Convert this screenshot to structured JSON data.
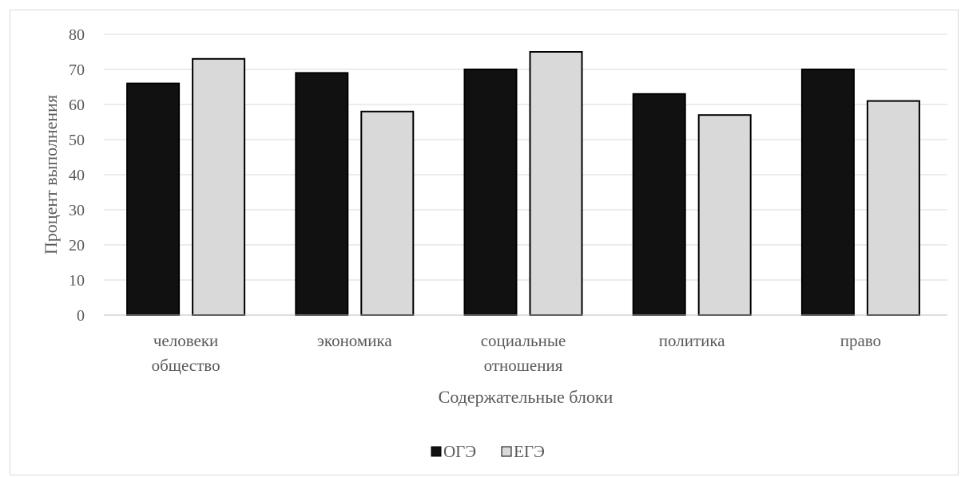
{
  "chart_data": {
    "type": "bar",
    "categories": [
      [
        "человеки",
        "общество"
      ],
      [
        "экономика"
      ],
      [
        "социальные",
        "отношения"
      ],
      [
        "политика"
      ],
      [
        "право"
      ]
    ],
    "series": [
      {
        "name": "ОГЭ",
        "values": [
          66,
          69,
          70,
          63,
          70
        ],
        "color": "#111111"
      },
      {
        "name": "ЕГЭ",
        "values": [
          73,
          58,
          75,
          57,
          61
        ],
        "color": "#d9d9d9"
      }
    ],
    "title": "",
    "xlabel": "Содержательные блоки",
    "ylabel": "Процент выполнения",
    "ylim": [
      0,
      80
    ],
    "yticks": [
      0,
      10,
      20,
      30,
      40,
      50,
      60,
      70,
      80
    ],
    "grid": true,
    "legend_position": "bottom"
  }
}
